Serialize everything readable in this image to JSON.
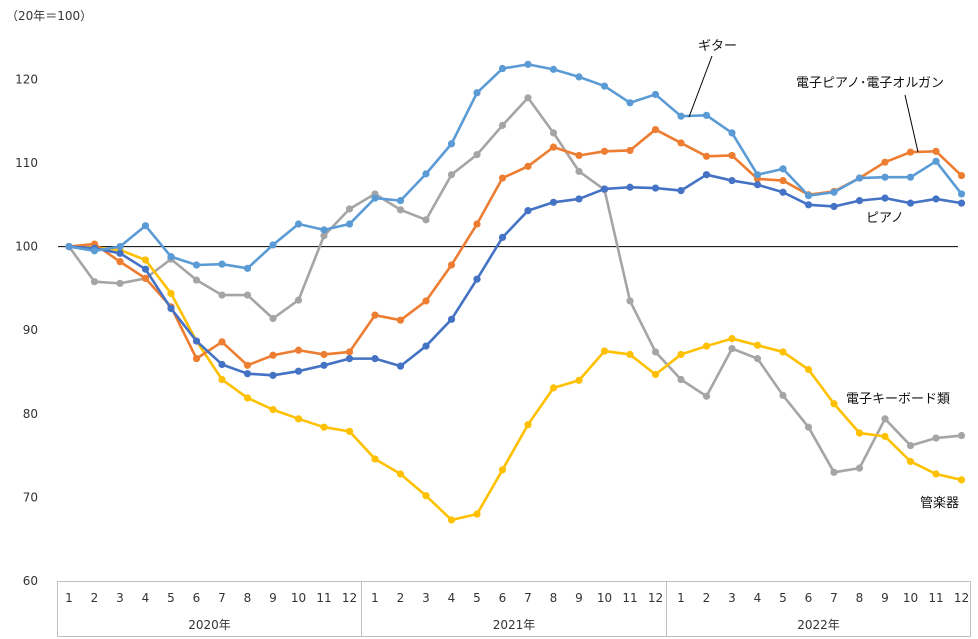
{
  "chart_data": {
    "type": "line",
    "unit_label": "（20年＝100）",
    "ylim": [
      60,
      125
    ],
    "yticks": [
      60,
      70,
      80,
      90,
      100,
      110,
      120
    ],
    "reference_line": 100,
    "grid": false,
    "x_month_labels": [
      "1",
      "2",
      "3",
      "4",
      "5",
      "6",
      "7",
      "8",
      "9",
      "10",
      "11",
      "12",
      "1",
      "2",
      "3",
      "4",
      "5",
      "6",
      "7",
      "8",
      "9",
      "10",
      "11",
      "12",
      "1",
      "2",
      "3",
      "4",
      "5",
      "6",
      "7",
      "8",
      "9",
      "10",
      "11",
      "12"
    ],
    "years": [
      "2020年",
      "2021年",
      "2022年"
    ],
    "series": [
      {
        "name": "ギター",
        "color": "#5B9BD5",
        "values": [
          100,
          99.5,
          100,
          102.5,
          98.8,
          97.8,
          97.9,
          97.4,
          100.2,
          102.7,
          102,
          102.7,
          105.8,
          105.5,
          108.7,
          112.3,
          118.4,
          121.3,
          121.8,
          121.2,
          120.3,
          119.2,
          117.2,
          118.2,
          115.6,
          115.7,
          113.6,
          108.6,
          109.3,
          106.1,
          106.5,
          108.2,
          108.3,
          108.3,
          110.2,
          106.3
        ]
      },
      {
        "name": "電子ピアノ･電子オルガン",
        "color": "#ED7D31",
        "values": [
          100,
          100.3,
          98.2,
          96.2,
          92.8,
          86.6,
          88.6,
          85.8,
          87,
          87.6,
          87.1,
          87.4,
          91.8,
          91.2,
          93.5,
          97.8,
          102.7,
          108.2,
          109.6,
          111.9,
          110.9,
          111.4,
          111.5,
          114,
          112.4,
          110.8,
          110.9,
          108.1,
          107.9,
          106.2,
          106.6,
          108.2,
          110.1,
          111.3,
          111.4,
          108.5
        ]
      },
      {
        "name": "ピアノ",
        "color": "#4472C4",
        "values": [
          100,
          99.8,
          99.2,
          97.3,
          92.6,
          88.7,
          85.9,
          84.8,
          84.6,
          85.1,
          85.8,
          86.6,
          86.6,
          85.7,
          88.1,
          91.3,
          96.1,
          101.1,
          104.3,
          105.3,
          105.7,
          106.9,
          107.1,
          107,
          106.7,
          108.6,
          107.9,
          107.4,
          106.5,
          105,
          104.8,
          105.5,
          105.8,
          105.2,
          105.7,
          105.2
        ]
      },
      {
        "name": "電子キーボード類",
        "color": "#A5A5A5",
        "values": [
          100,
          95.8,
          95.6,
          96.2,
          98.5,
          96,
          94.2,
          94.2,
          91.4,
          93.6,
          101.3,
          104.5,
          106.3,
          104.4,
          103.2,
          108.6,
          111,
          114.5,
          117.8,
          113.6,
          109,
          106.8,
          93.5,
          87.4,
          84.1,
          82.1,
          87.8,
          86.6,
          82.2,
          78.4,
          73,
          73.5,
          79.4,
          76.2,
          77.1,
          77.4
        ]
      },
      {
        "name": "管楽器",
        "color": "#FFC000",
        "values": [
          100,
          99.9,
          99.6,
          98.4,
          94.4,
          88.7,
          84.1,
          81.9,
          80.5,
          79.4,
          78.4,
          77.9,
          74.6,
          72.8,
          70.2,
          67.3,
          68,
          73.3,
          78.7,
          83.1,
          84,
          87.5,
          87.1,
          84.7,
          87.1,
          88.1,
          89,
          88.2,
          87.4,
          85.3,
          81.2,
          77.7,
          77.3,
          74.3,
          72.8,
          72.1
        ]
      }
    ]
  }
}
